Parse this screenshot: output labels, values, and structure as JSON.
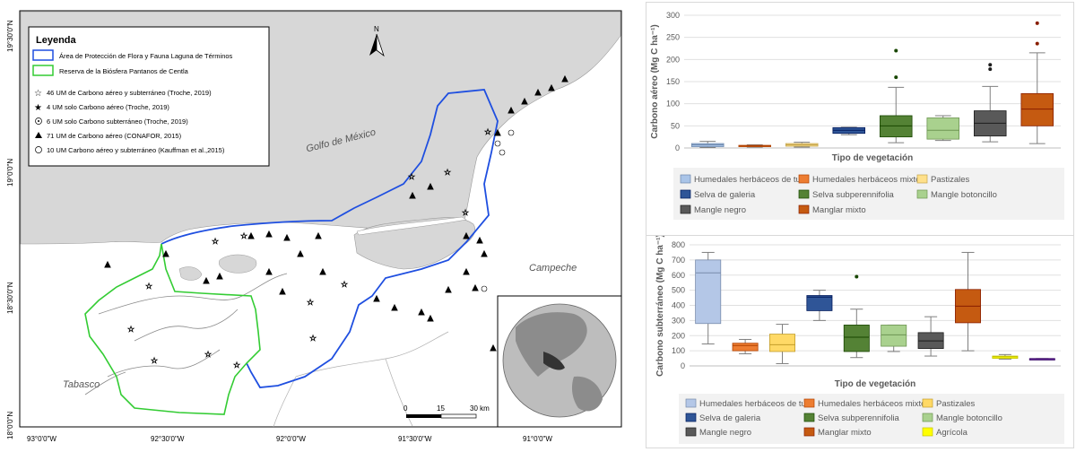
{
  "map": {
    "legend_title": "Leyenda",
    "legend_items": [
      "Área de Protección de Flora y Fauna Laguna de Términos",
      "Reserva de la Biósfera Pantanos de Centla",
      "46 UM de Carbono aéreo y subterráneo (Troche, 2019)",
      "4 UM solo Carbono aéreo (Troche, 2019)",
      "6 UM solo Carbono subterráneo (Troche, 2019)",
      "71 UM de Carbono aéreo (CONAFOR, 2015)",
      "10 UM Carbono aéreo y subterráneo (Kauffman et al.,2015)"
    ],
    "legend_colors": {
      "apff": "#1f4fe0",
      "reserva": "#33cc33"
    },
    "labels": {
      "gulf": "Golfo de México",
      "campeche": "Campeche",
      "tabasco": "Tabasco"
    },
    "north_label": "N",
    "lat_labels": [
      "19°30'0\"N",
      "19°0'0\"N",
      "18°30'0\"N",
      "18°0'0\"N"
    ],
    "lon_labels": [
      "93°0'0\"W",
      "92°30'0\"W",
      "92°0'0\"W",
      "91°30'0\"W",
      "91°0'0\"W"
    ],
    "scale_labels": [
      "0",
      "15",
      "30 km"
    ]
  },
  "chart_data": [
    {
      "type": "box",
      "xlabel": "Tipo de vegetación",
      "ylabel": "Carbono aéreo (Mg C ha⁻¹)",
      "ylim": [
        0,
        300
      ],
      "yticks": [
        0,
        50,
        100,
        150,
        200,
        250,
        300
      ],
      "grid": true,
      "series": [
        {
          "name": "Humedales herbáceos de tule",
          "color": "#a9c4e8",
          "q1": 3,
          "median": 7,
          "q3": 10,
          "whisker_low": 1,
          "whisker_high": 15,
          "outliers": []
        },
        {
          "name": "Humedales herbáceos mixtos",
          "color": "#ed7d31",
          "q1": 3,
          "median": 5,
          "q3": 6,
          "whisker_low": 2,
          "whisker_high": 7,
          "outliers": []
        },
        {
          "name": "Pastizales",
          "color": "#ffe08a",
          "q1": 4,
          "median": 7,
          "q3": 10,
          "whisker_low": 2,
          "whisker_high": 13,
          "outliers": []
        },
        {
          "name": "Selva de galeria",
          "color": "#2f5597",
          "q1": 33,
          "median": 40,
          "q3": 46,
          "whisker_low": 30,
          "whisker_high": 47,
          "outliers": []
        },
        {
          "name": "Selva subperennifolia",
          "color": "#548235",
          "q1": 25,
          "median": 50,
          "q3": 73,
          "whisker_low": 12,
          "whisker_high": 137,
          "outliers": [
            160,
            220
          ]
        },
        {
          "name": "Mangle botoncillo",
          "color": "#a9d18e",
          "q1": 20,
          "median": 40,
          "q3": 68,
          "whisker_low": 17,
          "whisker_high": 73,
          "outliers": []
        },
        {
          "name": "Mangle negro",
          "color": "#595959",
          "q1": 27,
          "median": 56,
          "q3": 84,
          "whisker_low": 14,
          "whisker_high": 139,
          "outliers": [
            178,
            188
          ]
        },
        {
          "name": "Manglar mixto",
          "color": "#c55a11",
          "q1": 50,
          "median": 88,
          "q3": 123,
          "whisker_low": 10,
          "whisker_high": 215,
          "outliers": [
            236,
            282
          ]
        }
      ]
    },
    {
      "type": "box",
      "xlabel": "Tipo de vegetación",
      "ylabel": "Carbono subterráneo (Mg C ha⁻¹)",
      "ylim": [
        0,
        800
      ],
      "yticks": [
        0,
        100,
        200,
        300,
        400,
        500,
        600,
        700,
        800
      ],
      "grid": true,
      "series": [
        {
          "name": "Humedales herbáceos de tule",
          "color": "#b4c7e7",
          "q1": 280,
          "median": 615,
          "q3": 700,
          "whisker_low": 145,
          "whisker_high": 750,
          "outliers": []
        },
        {
          "name": "Humedales herbáceos mixtos",
          "color": "#ed7d31",
          "q1": 100,
          "median": 135,
          "q3": 150,
          "whisker_low": 80,
          "whisker_high": 175,
          "outliers": []
        },
        {
          "name": "Pastizales",
          "color": "#ffd966",
          "q1": 95,
          "median": 140,
          "q3": 210,
          "whisker_low": 15,
          "whisker_high": 275,
          "outliers": []
        },
        {
          "name": "Selva de galeria",
          "color": "#2f5597",
          "q1": 365,
          "median": 455,
          "q3": 465,
          "whisker_low": 300,
          "whisker_high": 500,
          "outliers": []
        },
        {
          "name": "Selva subperennifolia",
          "color": "#548235",
          "q1": 95,
          "median": 190,
          "q3": 270,
          "whisker_low": 55,
          "whisker_high": 375,
          "outliers": [
            590
          ]
        },
        {
          "name": "Mangle botoncillo",
          "color": "#a9d18e",
          "q1": 130,
          "median": 205,
          "q3": 270,
          "whisker_low": 95,
          "whisker_high": 270,
          "outliers": []
        },
        {
          "name": "Mangle negro",
          "color": "#595959",
          "q1": 115,
          "median": 165,
          "q3": 220,
          "whisker_low": 65,
          "whisker_high": 325,
          "outliers": []
        },
        {
          "name": "Manglar mixto",
          "color": "#c55a11",
          "q1": 285,
          "median": 395,
          "q3": 505,
          "whisker_low": 100,
          "whisker_high": 750,
          "outliers": []
        },
        {
          "name": "Agrícola",
          "color": "#ffff00",
          "q1": 50,
          "median": 60,
          "q3": 65,
          "whisker_low": 45,
          "whisker_high": 75,
          "outliers": []
        },
        {
          "name": "",
          "color": "#7030a0",
          "q1": 48,
          "median": 48,
          "q3": 48,
          "whisker_low": 48,
          "whisker_high": 48,
          "outliers": []
        }
      ]
    }
  ]
}
